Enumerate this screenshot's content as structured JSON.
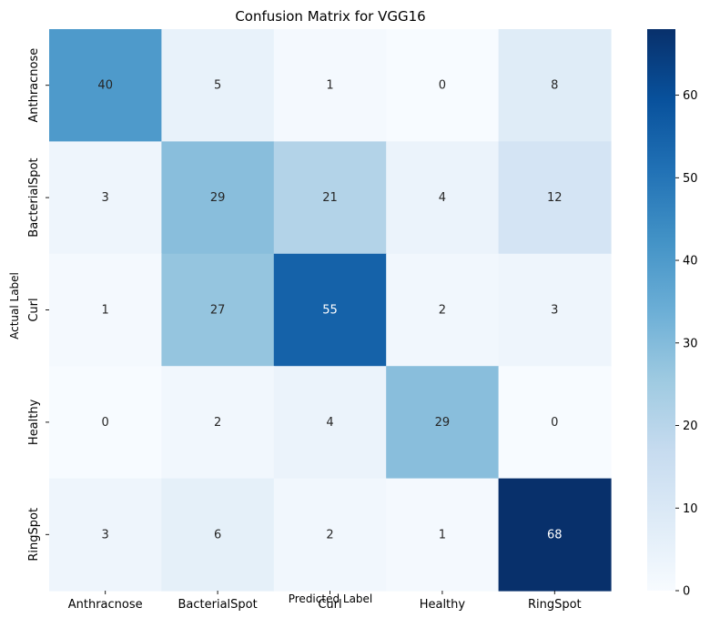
{
  "chart_data": {
    "type": "heatmap",
    "title": "Confusion Matrix for VGG16",
    "xlabel": "Predicted Label",
    "ylabel": "Actual Label",
    "x_categories": [
      "Anthracnose",
      "BacterialSpot",
      "Curl",
      "Healthy",
      "RingSpot"
    ],
    "y_categories": [
      "Anthracnose",
      "BacterialSpot",
      "Curl",
      "Healthy",
      "RingSpot"
    ],
    "values": [
      [
        40,
        5,
        1,
        0,
        8
      ],
      [
        3,
        29,
        21,
        4,
        12
      ],
      [
        1,
        27,
        55,
        2,
        3
      ],
      [
        0,
        2,
        4,
        29,
        0
      ],
      [
        3,
        6,
        2,
        1,
        68
      ]
    ],
    "colormap": "Blues",
    "colormap_stops": [
      "#f7fbff",
      "#deebf7",
      "#c6dbef",
      "#9ecae1",
      "#6baed6",
      "#4292c6",
      "#2171b5",
      "#08519c",
      "#08306b"
    ],
    "value_range": [
      0,
      68
    ],
    "colorbar_ticks": [
      "0",
      "10",
      "20",
      "30",
      "40",
      "50",
      "60"
    ],
    "annotations": true
  }
}
